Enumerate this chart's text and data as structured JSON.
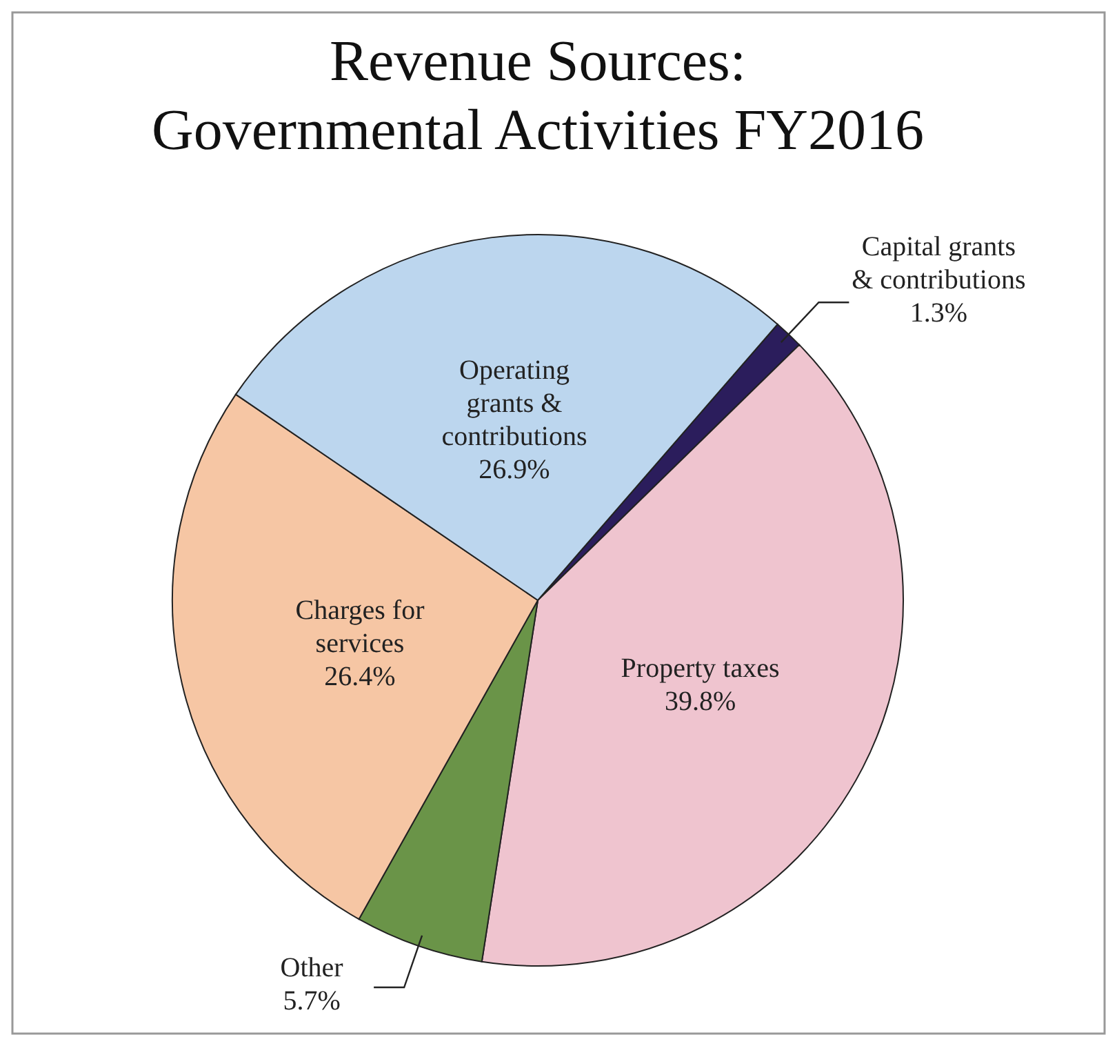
{
  "chart_data": {
    "type": "pie",
    "title": "Revenue Sources: Governmental Activities FY2016",
    "categories": [
      "Capital grants & contributions",
      "Property taxes",
      "Other",
      "Charges for services",
      "Operating grants & contributions"
    ],
    "values": [
      1.3,
      39.8,
      5.7,
      26.4,
      26.9
    ],
    "value_labels": [
      "1.3%",
      "39.8%",
      "5.7%",
      "26.4%",
      "26.9%"
    ],
    "colors": [
      "#2b1d5c",
      "#efc4cf",
      "#6a9448",
      "#f6c6a4",
      "#bcd6ee"
    ]
  }
}
